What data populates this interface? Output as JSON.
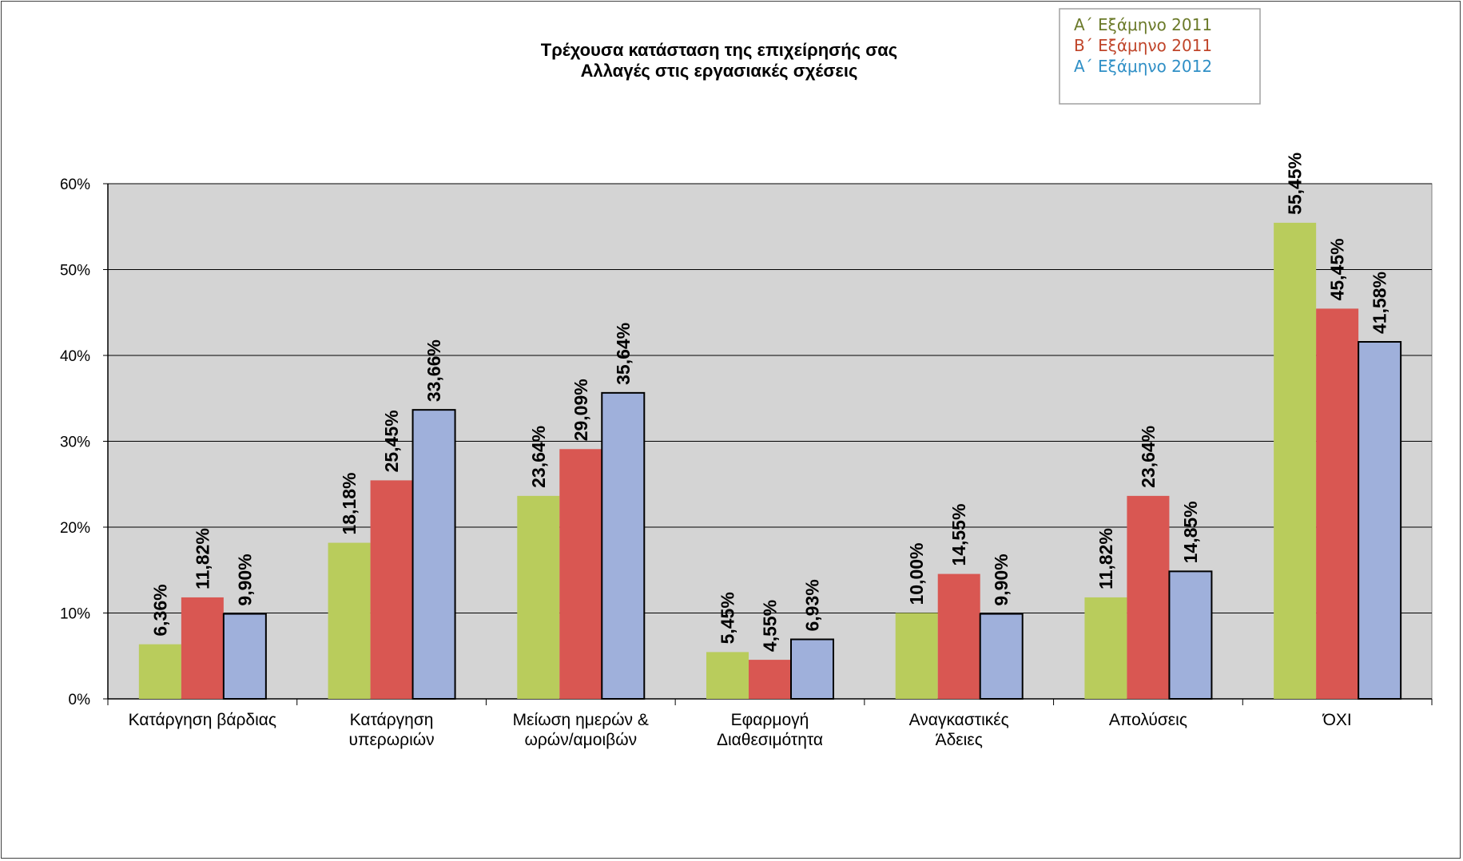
{
  "chart_data": {
    "type": "bar",
    "title": [
      "Τρέχουσα κατάσταση της επιχείρησής σας",
      "Αλλαγές στις εργασιακές σχέσεις"
    ],
    "categories": [
      [
        "Κατάργηση βάρδιας"
      ],
      [
        "Κατάργηση",
        "υπερωριών"
      ],
      [
        "Μείωση ημερών &",
        "ωρών/αμοιβών"
      ],
      [
        "Εφαρμογή",
        "Διαθεσιμότητα"
      ],
      [
        "Αναγκαστικές",
        "Άδειες"
      ],
      [
        "Απολύσεις"
      ],
      [
        "ΌΧΙ"
      ]
    ],
    "series": [
      {
        "name": "Α΄ Εξάμηνο 2011",
        "color": "#b9cc5c",
        "legend_color": "#6b7a2a",
        "border": false,
        "values": [
          6.36,
          18.18,
          23.64,
          5.45,
          10.0,
          11.82,
          55.45
        ],
        "labels": [
          "6,36%",
          "18,18%",
          "23,64%",
          "5,45%",
          "10,00%",
          "11,82%",
          "55,45%"
        ]
      },
      {
        "name": "Β΄ Εξάμηνο 2011",
        "color": "#d95752",
        "legend_color": "#c0452a",
        "border": false,
        "values": [
          11.82,
          25.45,
          29.09,
          4.55,
          14.55,
          23.64,
          45.45
        ],
        "labels": [
          "11,82%",
          "25,45%",
          "29,09%",
          "4,55%",
          "14,55%",
          "23,64%",
          "45,45%"
        ]
      },
      {
        "name": "Α΄ Εξάμηνο 2012",
        "color": "#9fb0db",
        "legend_color": "#2f8fc6",
        "border": true,
        "values": [
          9.9,
          33.66,
          35.64,
          6.93,
          9.9,
          14.85,
          41.58
        ],
        "labels": [
          "9,90%",
          "33,66%",
          "35,64%",
          "6,93%",
          "9,90%",
          "14,85%",
          "41,58%"
        ]
      }
    ],
    "yticks": [
      "0%",
      "10%",
      "20%",
      "30%",
      "40%",
      "50%",
      "60%"
    ],
    "ylim": [
      0,
      60
    ],
    "ystep": 10,
    "grid": true,
    "plot_background": "#d4d4d4",
    "legend_position": "top-right"
  }
}
